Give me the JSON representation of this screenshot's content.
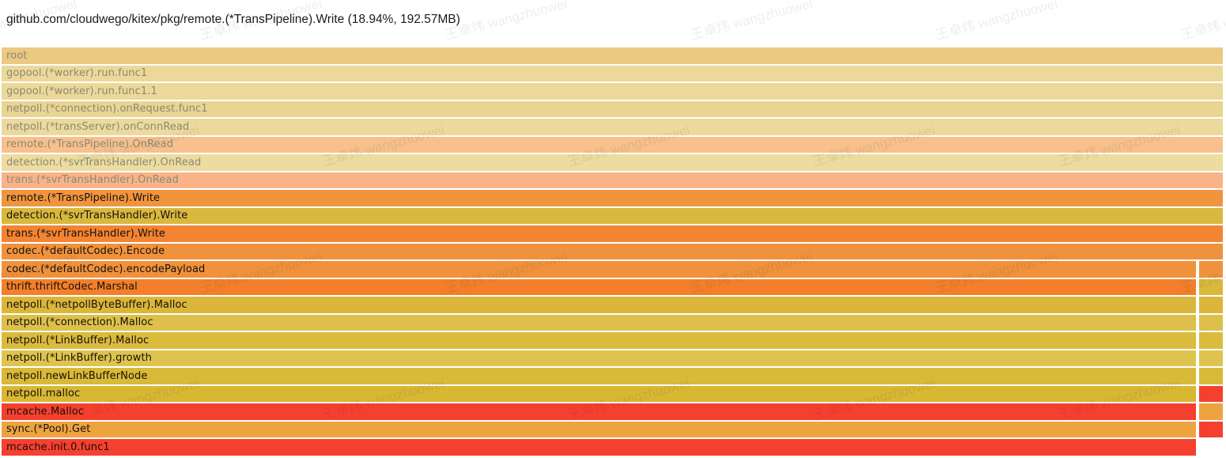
{
  "title": "github.com/cloudwego/kitex/pkg/remote.(*TransPipeline).Write (18.94%, 192.57MB)",
  "selected_frame": {
    "function": "github.com/cloudwego/kitex/pkg/remote.(*TransPipeline).Write",
    "percent": "18.94%",
    "size": "192.57MB"
  },
  "watermark_text": "王卓炜 wangzhuowei",
  "colors": {
    "background": "#ffffff",
    "red": "#f6402f",
    "orange": "#f0923d",
    "gold": "#dab93c",
    "dimmed_text": "#8b8878",
    "active_text": "#17110a"
  },
  "chart_data": {
    "type": "bar",
    "variant": "flamegraph-icicle",
    "title": "github.com/cloudwego/kitex/pkg/remote.(*TransPipeline).Write (18.94%, 192.57MB)",
    "legend": "none",
    "grid": false,
    "note": "Memory profile flame graph; selected stack = remote.(*TransPipeline).Write, 18.94% / 192.57MB. Rows 1-8 are faded ancestor frames; rows 13-23 have a narrow sibling branch segment at far right (~2% width).",
    "frames": [
      {
        "label": "root",
        "color": "#ebc983",
        "text": "dimmed",
        "main": "full",
        "width_fraction": 1.0,
        "right_color": null
      },
      {
        "label": "gopool.(*worker).run.func1",
        "color": "#ecd898",
        "text": "dimmed",
        "main": "full",
        "width_fraction": 1.0,
        "right_color": null
      },
      {
        "label": "gopool.(*worker).run.func1.1",
        "color": "#ecd898",
        "text": "dimmed",
        "main": "full",
        "width_fraction": 1.0,
        "right_color": null
      },
      {
        "label": "netpoll.(*connection).onRequest.func1",
        "color": "#ead492",
        "text": "dimmed",
        "main": "full",
        "width_fraction": 1.0,
        "right_color": null
      },
      {
        "label": "netpoll.(*transServer).onConnRead",
        "color": "#ecd99c",
        "text": "dimmed",
        "main": "full",
        "width_fraction": 1.0,
        "right_color": null
      },
      {
        "label": "remote.(*TransPipeline).OnRead",
        "color": "#f7c08c",
        "text": "dimmed",
        "main": "full",
        "width_fraction": 1.0,
        "right_color": null
      },
      {
        "label": "detection.(*svrTransHandler).OnRead",
        "color": "#eddc9f",
        "text": "dimmed",
        "main": "full",
        "width_fraction": 1.0,
        "right_color": null
      },
      {
        "label": "trans.(*svrTransHandler).OnRead",
        "color": "#fab388",
        "text": "dimmed",
        "main": "full",
        "width_fraction": 1.0,
        "right_color": null
      },
      {
        "label": "remote.(*TransPipeline).Write",
        "color": "#f0953e",
        "text": "normal",
        "main": "full",
        "width_fraction": 1.0,
        "right_color": null
      },
      {
        "label": "detection.(*svrTransHandler).Write",
        "color": "#d9b83e",
        "text": "normal",
        "main": "full",
        "width_fraction": 1.0,
        "right_color": null
      },
      {
        "label": "trans.(*svrTransHandler).Write",
        "color": "#f28433",
        "text": "normal",
        "main": "full",
        "width_fraction": 1.0,
        "right_color": null
      },
      {
        "label": "codec.(*defaultCodec).Encode",
        "color": "#f0923d",
        "text": "normal",
        "main": "full",
        "width_fraction": 1.0,
        "right_color": null
      },
      {
        "label": "codec.(*defaultCodec).encodePayload",
        "color": "#f0913c",
        "text": "normal",
        "main": "short",
        "width_fraction": 0.978,
        "right_color": "#f0923d"
      },
      {
        "label": "thrift.thriftCodec.Marshal",
        "color": "#f37f2b",
        "text": "normal",
        "main": "short",
        "width_fraction": 0.978,
        "right_color": "#d9b93b"
      },
      {
        "label": "netpoll.(*netpollByteBuffer).Malloc",
        "color": "#dab73a",
        "text": "normal",
        "main": "short",
        "width_fraction": 0.978,
        "right_color": "#dab73a"
      },
      {
        "label": "netpoll.(*connection).Malloc",
        "color": "#dcc04b",
        "text": "normal",
        "main": "short",
        "width_fraction": 0.978,
        "right_color": "#dcc04b"
      },
      {
        "label": "netpoll.(*LinkBuffer).Malloc",
        "color": "#dabb3e",
        "text": "normal",
        "main": "short",
        "width_fraction": 0.978,
        "right_color": "#dabb3e"
      },
      {
        "label": "netpoll.(*LinkBuffer).growth",
        "color": "#dec44e",
        "text": "normal",
        "main": "short",
        "width_fraction": 0.978,
        "right_color": "#dec44e"
      },
      {
        "label": "netpoll.newLinkBufferNode",
        "color": "#d9b938",
        "text": "normal",
        "main": "short",
        "width_fraction": 0.978,
        "right_color": "#d9b938"
      },
      {
        "label": "netpoll.malloc",
        "color": "#d8b733",
        "text": "normal",
        "main": "short",
        "width_fraction": 0.978,
        "right_color": "#f6402f"
      },
      {
        "label": "mcache.Malloc",
        "color": "#f6402f",
        "text": "normal",
        "main": "short",
        "width_fraction": 0.978,
        "right_color": "#eda440"
      },
      {
        "label": "sync.(*Pool).Get",
        "color": "#eda440",
        "text": "normal",
        "main": "short",
        "width_fraction": 0.978,
        "right_color": "#f6402f"
      },
      {
        "label": "mcache.init.0.func1",
        "color": "#f6402f",
        "text": "normal",
        "main": "short",
        "width_fraction": 0.978,
        "right_color": null
      }
    ]
  }
}
